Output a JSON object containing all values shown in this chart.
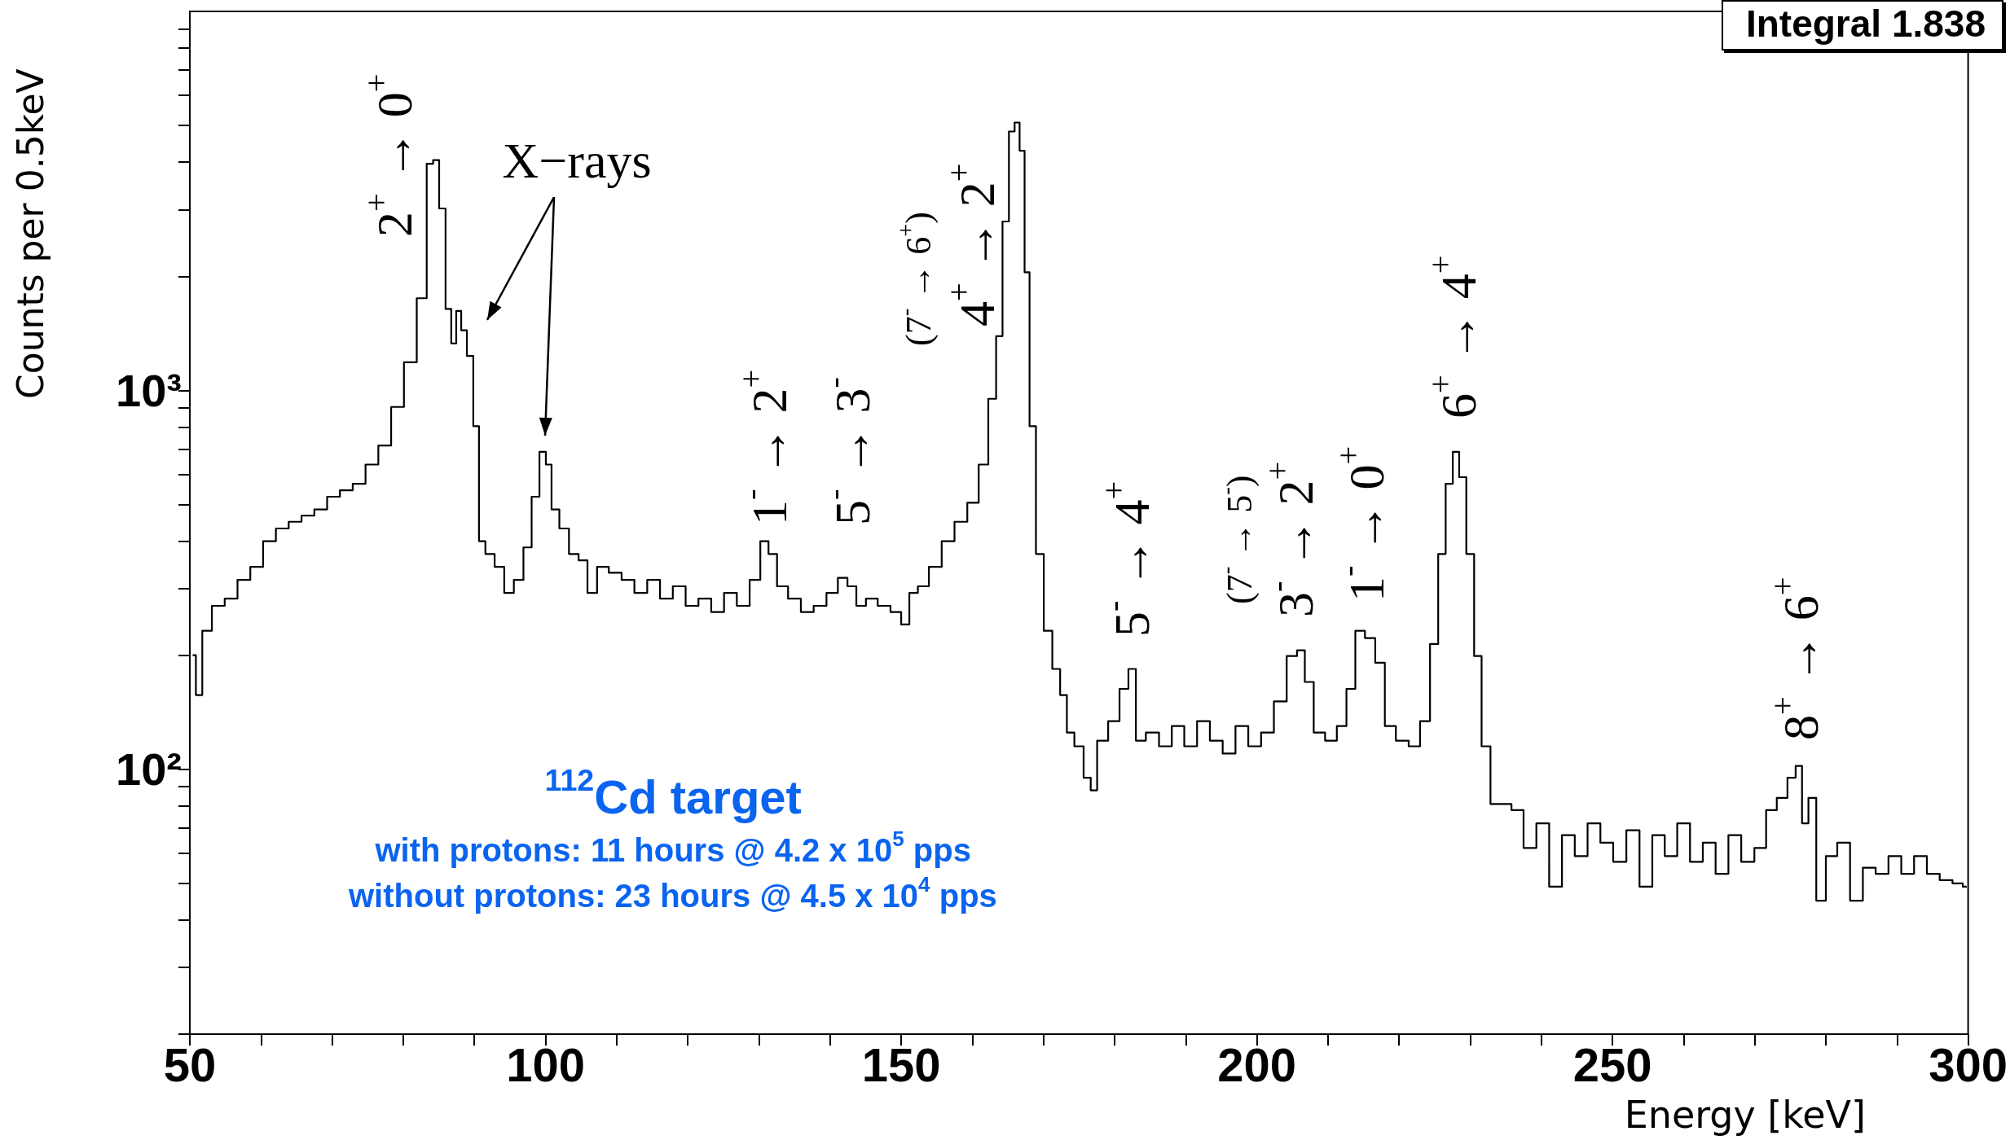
{
  "chart_data": {
    "type": "step",
    "xlabel": "Energy [keV]",
    "ylabel": "Counts per 0.5keV",
    "log": "y",
    "marker": "none",
    "xlim": [
      50,
      300
    ],
    "ylim": [
      20,
      10000
    ],
    "xticks": [
      50,
      {
        "value": 60,
        "label": null
      },
      {
        "value": 70,
        "label": null
      },
      {
        "value": 80,
        "label": null
      },
      {
        "value": 90,
        "label": null
      },
      100,
      {
        "value": 110,
        "label": null
      },
      {
        "value": 120,
        "label": null
      },
      {
        "value": 130,
        "label": null
      },
      {
        "value": 140,
        "label": null
      },
      150,
      {
        "value": 160,
        "label": null
      },
      {
        "value": 170,
        "label": null
      },
      {
        "value": 180,
        "label": null
      },
      {
        "value": 190,
        "label": null
      },
      200,
      {
        "value": 210,
        "label": null
      },
      {
        "value": 220,
        "label": null
      },
      {
        "value": 230,
        "label": null
      },
      {
        "value": 240,
        "label": null
      },
      250,
      {
        "value": 260,
        "label": null
      },
      {
        "value": 270,
        "label": null
      },
      {
        "value": 280,
        "label": null
      },
      {
        "value": 290,
        "label": null
      },
      300
    ],
    "yticks": [
      {
        "value": 20,
        "label": null
      },
      {
        "value": 30,
        "label": null
      },
      {
        "value": 40,
        "label": null
      },
      {
        "value": 50,
        "label": null
      },
      {
        "value": 60,
        "label": null
      },
      {
        "value": 70,
        "label": null
      },
      {
        "value": 80,
        "label": null
      },
      {
        "value": 90,
        "label": null
      },
      {
        "value": 100,
        "label": "10²"
      },
      {
        "value": 200,
        "label": null
      },
      {
        "value": 300,
        "label": null
      },
      {
        "value": 400,
        "label": null
      },
      {
        "value": 500,
        "label": null
      },
      {
        "value": 600,
        "label": null
      },
      {
        "value": 700,
        "label": null
      },
      {
        "value": 800,
        "label": null
      },
      {
        "value": 900,
        "label": null
      },
      {
        "value": 1000,
        "label": "10³"
      },
      {
        "value": 2000,
        "label": null
      },
      {
        "value": 3000,
        "label": null
      },
      {
        "value": 4000,
        "label": null
      },
      {
        "value": 5000,
        "label": null
      },
      {
        "value": 6000,
        "label": null
      },
      {
        "value": 7000,
        "label": null
      },
      {
        "value": 8000,
        "label": null
      },
      {
        "value": 9000,
        "label": null
      }
    ],
    "series": [
      {
        "color": "#000000",
        "x": [
          50.4,
          51.3,
          52.2,
          54,
          55.8,
          57.6,
          59.4,
          61.2,
          63,
          64.8,
          66.6,
          68.4,
          70.2,
          72,
          73.8,
          75.6,
          77.4,
          79.2,
          81,
          82.8,
          83.8,
          84.6,
          85.5,
          86.4,
          87.1,
          87.8,
          88.5,
          89.4,
          90.3,
          91,
          92.1,
          93.6,
          94.8,
          96.3,
          97.5,
          98.6,
          99.7,
          100.4,
          101.3,
          102.6,
          104,
          105.3,
          106.5,
          108,
          109.8,
          111.6,
          113.4,
          115.2,
          117,
          118.8,
          120.6,
          122.4,
          124.2,
          126,
          127.8,
          129.6,
          130.8,
          131.9,
          133.2,
          135,
          136.8,
          138.6,
          140.4,
          141.8,
          143.1,
          144.3,
          145.8,
          147.6,
          149.4,
          150.6,
          151.7,
          153,
          154.8,
          156.6,
          158.4,
          160.2,
          161.6,
          162.9,
          163.8,
          164.7,
          165.6,
          166.3,
          167,
          167.7,
          168.4,
          169.5,
          170.6,
          171.9,
          172.8,
          173.8,
          174.9,
          176.4,
          176.9,
          178.2,
          180,
          181.4,
          182.5,
          183.5,
          185.3,
          187.2,
          188.9,
          190.7,
          192.5,
          194.3,
          196.1,
          197.9,
          199.7,
          201.5,
          203.3,
          205.1,
          206.2,
          207.3,
          208.7,
          210.5,
          212,
          213.2,
          214.5,
          215.9,
          217.4,
          218.6,
          220.5,
          222.2,
          223.7,
          225,
          226,
          227.1,
          228,
          228.9,
          230,
          231.1,
          232.1,
          233.6,
          235,
          236.6,
          238.4,
          240.2,
          242,
          243.8,
          245.6,
          247.4,
          249.2,
          251,
          252.9,
          254.7,
          256.5,
          258.2,
          260,
          261.8,
          263.6,
          265.4,
          267.2,
          269,
          270.9,
          272.3,
          273.9,
          275.3,
          276.2,
          277.1,
          278,
          279.3,
          280.7,
          282.5,
          284.3,
          286.1,
          287.9,
          289.7,
          291.5,
          293.3,
          295.1,
          296.9,
          298.7,
          299.8
        ],
        "values": [
          200,
          157,
          232,
          270,
          282,
          316,
          342,
          400,
          432,
          450,
          467,
          485,
          524,
          545,
          567,
          637,
          715,
          904,
          1186,
          1750,
          3960,
          4050,
          3020,
          1640,
          1330,
          1620,
          1440,
          1233,
          804,
          400,
          370,
          342,
          292,
          316,
          385,
          524,
          688,
          637,
          485,
          432,
          370,
          356,
          292,
          342,
          330,
          316,
          292,
          316,
          282,
          304,
          270,
          282,
          260,
          292,
          270,
          316,
          400,
          370,
          304,
          282,
          260,
          270,
          292,
          320,
          304,
          270,
          282,
          270,
          260,
          241,
          292,
          304,
          342,
          400,
          450,
          505,
          637,
          950,
          1390,
          2790,
          4820,
          5090,
          4290,
          2050,
          804,
          370,
          232,
          184,
          157,
          125,
          115,
          95,
          88,
          119,
          134,
          163,
          184,
          119,
          125,
          115,
          130,
          115,
          134,
          119,
          110,
          130,
          115,
          125,
          151,
          199,
          206,
          170,
          125,
          119,
          130,
          163,
          232,
          222,
          191,
          130,
          119,
          115,
          134,
          214,
          370,
          567,
          688,
          590,
          370,
          199,
          115,
          81,
          81,
          78,
          62,
          72,
          49,
          67,
          59,
          72,
          64,
          57,
          69,
          49,
          67,
          59,
          72,
          57,
          64,
          53,
          67,
          57,
          62,
          78,
          84,
          95,
          102,
          72,
          84,
          45,
          59,
          64,
          45,
          55,
          53,
          59,
          53,
          59,
          53,
          51,
          50,
          49
        ]
      }
    ],
    "annotations": [
      "X−rays",
      "2$^{+}$ → 0$^{+}$",
      "1$^{-}$ → 2$^{+}$",
      "5$^{-}$ → 3$^{-}$",
      "(7$^{-}$ → 6$^{+}$)",
      "4$^{+}$ → 2$^{+}$",
      "5$^{-}$ → 4$^{+}$",
      "(7$^{-}$ → 5$^{-}$)",
      "3$^{-}$ → 2$^{+}$",
      "1$^{-}$ → 0$^{+}$",
      "6$^{+}$ → 4$^{+}$",
      "8$^{+}$ → 6$^{+}$",
      "$^{112}$Cd target",
      "with protons: 11 hours @ 4.2 x 10$^{5}$ pps",
      "without protons: 23 hours @ 4.5 x 10$^{4}$ pps",
      "Integral   1.838"
    ]
  }
}
